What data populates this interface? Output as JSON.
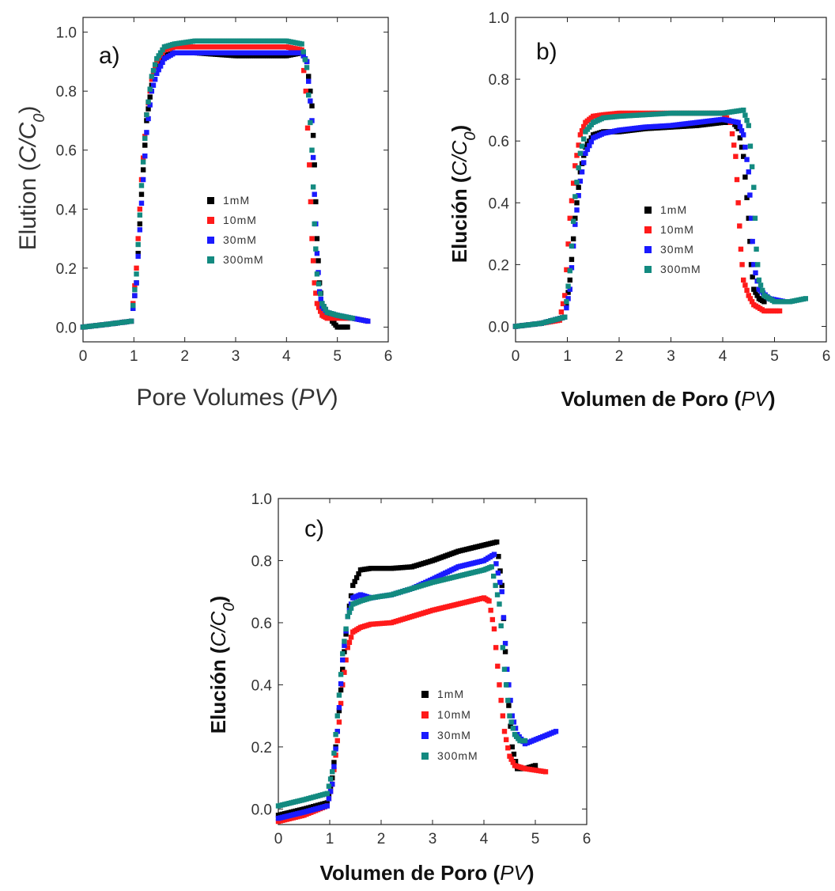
{
  "chart_data": [
    {
      "type": "scatter",
      "panel_label": "a)",
      "xlabel_text": "Pore Volumes",
      "xlabel_unit": "PV",
      "ylabel_text": "Elution",
      "ylabel_var": "C/C",
      "ylabel_sub": "0",
      "xlim": [
        0,
        6
      ],
      "ylim": [
        -0.05,
        1.05
      ],
      "xticks": [
        "0",
        "1",
        "2",
        "3",
        "4",
        "5",
        "6"
      ],
      "yticks": [
        "0.0",
        "0.2",
        "0.4",
        "0.6",
        "0.8",
        "1.0"
      ],
      "legend_position": "center",
      "series": [
        {
          "name": "1mM",
          "color": "#000000",
          "x": [
            0,
            0.5,
            0.95,
            1.05,
            1.15,
            1.25,
            1.35,
            1.45,
            1.6,
            1.8,
            2.2,
            3,
            3.5,
            4,
            4.3,
            4.4,
            4.5,
            4.55,
            4.6,
            4.65,
            4.7,
            4.8,
            4.9,
            5,
            5.1,
            5.2
          ],
          "y": [
            0.0,
            0.01,
            0.02,
            0.15,
            0.45,
            0.7,
            0.82,
            0.88,
            0.92,
            0.93,
            0.93,
            0.92,
            0.92,
            0.92,
            0.93,
            0.9,
            0.75,
            0.55,
            0.3,
            0.15,
            0.08,
            0.05,
            0.02,
            0.0,
            0.0,
            0.0
          ]
        },
        {
          "name": "10mM",
          "color": "#ff1a1a",
          "x": [
            0,
            0.5,
            0.95,
            1.05,
            1.15,
            1.25,
            1.35,
            1.45,
            1.6,
            1.8,
            2.2,
            3,
            3.5,
            4,
            4.3,
            4.38,
            4.45,
            4.5,
            4.55,
            4.6,
            4.7,
            4.8,
            5,
            5.3,
            5.6
          ],
          "y": [
            0.0,
            0.01,
            0.02,
            0.2,
            0.5,
            0.72,
            0.84,
            0.9,
            0.94,
            0.95,
            0.95,
            0.95,
            0.95,
            0.95,
            0.94,
            0.8,
            0.55,
            0.3,
            0.15,
            0.08,
            0.04,
            0.03,
            0.03,
            0.03,
            0.02
          ]
        },
        {
          "name": "30mM",
          "color": "#1a1aff",
          "x": [
            0,
            0.5,
            0.95,
            1.05,
            1.15,
            1.25,
            1.35,
            1.45,
            1.6,
            1.8,
            2.2,
            3,
            3.5,
            4,
            4.3,
            4.4,
            4.5,
            4.55,
            4.6,
            4.65,
            4.7,
            4.8,
            5,
            5.3,
            5.6
          ],
          "y": [
            0.0,
            0.01,
            0.02,
            0.15,
            0.42,
            0.66,
            0.8,
            0.86,
            0.91,
            0.93,
            0.93,
            0.93,
            0.93,
            0.93,
            0.93,
            0.9,
            0.7,
            0.45,
            0.25,
            0.12,
            0.07,
            0.05,
            0.04,
            0.03,
            0.02
          ]
        },
        {
          "name": "300mM",
          "color": "#138a80",
          "x": [
            0,
            0.5,
            0.95,
            1.05,
            1.15,
            1.25,
            1.35,
            1.45,
            1.6,
            1.8,
            2.2,
            3,
            3.5,
            4,
            4.3,
            4.4,
            4.5,
            4.55,
            4.6,
            4.7,
            4.8,
            5,
            5.3
          ],
          "y": [
            0.0,
            0.01,
            0.02,
            0.18,
            0.48,
            0.72,
            0.85,
            0.91,
            0.95,
            0.96,
            0.97,
            0.97,
            0.97,
            0.97,
            0.96,
            0.88,
            0.6,
            0.35,
            0.18,
            0.08,
            0.05,
            0.04,
            0.03
          ]
        }
      ],
      "legend": [
        {
          "label": "1mM",
          "color": "#000000"
        },
        {
          "label": "10mM",
          "color": "#ff1a1a"
        },
        {
          "label": "30mM",
          "color": "#1a1aff"
        },
        {
          "label": "300mM",
          "color": "#138a80"
        }
      ]
    },
    {
      "type": "scatter",
      "panel_label": "b)",
      "xlabel_text": "Volumen de Poro",
      "xlabel_unit": "PV",
      "ylabel_text": "Elución",
      "ylabel_var": "C/C",
      "ylabel_sub": "0",
      "xlim": [
        0,
        6
      ],
      "ylim": [
        -0.05,
        1.0
      ],
      "xticks": [
        "0",
        "1",
        "2",
        "3",
        "4",
        "5",
        "6"
      ],
      "yticks": [
        "0.0",
        "0.2",
        "0.4",
        "0.6",
        "0.8",
        "1.0"
      ],
      "legend_position": "center-right",
      "series": [
        {
          "name": "1mM",
          "color": "#000000",
          "x": [
            0,
            0.5,
            0.95,
            1.05,
            1.15,
            1.25,
            1.35,
            1.5,
            1.7,
            2,
            2.5,
            3,
            3.5,
            4,
            4.2,
            4.3,
            4.4,
            4.5,
            4.55,
            4.6,
            4.7,
            4.8
          ],
          "y": [
            0.0,
            0.01,
            0.03,
            0.15,
            0.35,
            0.5,
            0.58,
            0.62,
            0.63,
            0.63,
            0.64,
            0.645,
            0.65,
            0.66,
            0.66,
            0.64,
            0.55,
            0.35,
            0.2,
            0.12,
            0.09,
            0.08
          ]
        },
        {
          "name": "10mM",
          "color": "#ff1a1a",
          "x": [
            0,
            0.5,
            0.85,
            0.95,
            1.05,
            1.15,
            1.25,
            1.35,
            1.5,
            1.7,
            2,
            2.5,
            3,
            3.5,
            4,
            4.15,
            4.25,
            4.3,
            4.35,
            4.4,
            4.5,
            4.6,
            4.8,
            5.1
          ],
          "y": [
            0.0,
            0.01,
            0.02,
            0.1,
            0.35,
            0.52,
            0.62,
            0.66,
            0.68,
            0.685,
            0.69,
            0.69,
            0.69,
            0.69,
            0.69,
            0.66,
            0.55,
            0.4,
            0.25,
            0.15,
            0.1,
            0.07,
            0.05,
            0.05
          ]
        },
        {
          "name": "30mM",
          "color": "#1a1aff",
          "x": [
            0,
            0.5,
            0.95,
            1.05,
            1.15,
            1.25,
            1.35,
            1.5,
            1.7,
            2,
            2.5,
            3,
            3.5,
            4,
            4.3,
            4.4,
            4.5,
            4.55,
            4.6,
            4.7,
            4.9,
            5.2
          ],
          "y": [
            0.0,
            0.01,
            0.03,
            0.12,
            0.33,
            0.47,
            0.56,
            0.61,
            0.625,
            0.635,
            0.645,
            0.65,
            0.66,
            0.67,
            0.66,
            0.62,
            0.5,
            0.35,
            0.2,
            0.12,
            0.09,
            0.08
          ]
        },
        {
          "name": "300mM",
          "color": "#138a80",
          "x": [
            0,
            0.5,
            0.95,
            1.05,
            1.15,
            1.25,
            1.35,
            1.5,
            1.7,
            2,
            2.5,
            3,
            3.5,
            4,
            4.4,
            4.5,
            4.6,
            4.65,
            4.7,
            4.8,
            5,
            5.3,
            5.6
          ],
          "y": [
            0.0,
            0.01,
            0.03,
            0.18,
            0.42,
            0.56,
            0.63,
            0.66,
            0.675,
            0.68,
            0.685,
            0.69,
            0.69,
            0.69,
            0.7,
            0.65,
            0.45,
            0.25,
            0.15,
            0.1,
            0.08,
            0.08,
            0.09
          ]
        }
      ],
      "legend": [
        {
          "label": "1mM",
          "color": "#000000"
        },
        {
          "label": "10mM",
          "color": "#ff1a1a"
        },
        {
          "label": "30mM",
          "color": "#1a1aff"
        },
        {
          "label": "300mM",
          "color": "#138a80"
        }
      ]
    },
    {
      "type": "scatter",
      "panel_label": "c)",
      "xlabel_text": "Volumen de Poro",
      "xlabel_unit": "PV",
      "ylabel_text": "Elución",
      "ylabel_var": "C/C",
      "ylabel_sub": "0",
      "xlim": [
        0,
        6
      ],
      "ylim": [
        -0.05,
        1.0
      ],
      "xticks": [
        "0",
        "1",
        "2",
        "3",
        "4",
        "5",
        "6"
      ],
      "yticks": [
        "0.0",
        "0.2",
        "0.4",
        "0.6",
        "0.8",
        "1.0"
      ],
      "legend_position": "bottom-right",
      "series": [
        {
          "name": "1mM",
          "color": "#000000",
          "x": [
            0,
            0.5,
            0.95,
            1.05,
            1.15,
            1.25,
            1.35,
            1.45,
            1.6,
            1.8,
            2.2,
            2.6,
            3,
            3.5,
            4,
            4.25,
            4.35,
            4.45,
            4.55,
            4.65,
            4.8,
            5
          ],
          "y": [
            -0.02,
            0.0,
            0.02,
            0.1,
            0.25,
            0.45,
            0.62,
            0.72,
            0.77,
            0.775,
            0.775,
            0.78,
            0.8,
            0.83,
            0.85,
            0.86,
            0.72,
            0.4,
            0.2,
            0.13,
            0.13,
            0.14
          ]
        },
        {
          "name": "10mM",
          "color": "#ff1a1a",
          "x": [
            0,
            0.5,
            0.95,
            1.05,
            1.15,
            1.25,
            1.35,
            1.45,
            1.6,
            1.8,
            2.2,
            2.6,
            3,
            3.5,
            4,
            4.1,
            4.2,
            4.3,
            4.4,
            4.5,
            4.6,
            4.8,
            5.2
          ],
          "y": [
            -0.04,
            -0.02,
            0.01,
            0.08,
            0.22,
            0.4,
            0.52,
            0.57,
            0.585,
            0.595,
            0.6,
            0.62,
            0.64,
            0.66,
            0.68,
            0.67,
            0.58,
            0.4,
            0.25,
            0.17,
            0.14,
            0.13,
            0.12
          ]
        },
        {
          "name": "30mM",
          "color": "#1a1aff",
          "x": [
            0,
            0.5,
            0.95,
            1.05,
            1.15,
            1.25,
            1.35,
            1.45,
            1.6,
            1.8,
            2.2,
            2.6,
            3,
            3.5,
            4,
            4.2,
            4.35,
            4.45,
            4.55,
            4.65,
            4.8,
            5.1,
            5.4
          ],
          "y": [
            -0.03,
            -0.01,
            0.01,
            0.08,
            0.25,
            0.48,
            0.62,
            0.68,
            0.69,
            0.68,
            0.69,
            0.71,
            0.74,
            0.78,
            0.8,
            0.82,
            0.7,
            0.45,
            0.3,
            0.24,
            0.21,
            0.23,
            0.25
          ]
        },
        {
          "name": "300mM",
          "color": "#138a80",
          "x": [
            0,
            0.5,
            0.95,
            1.05,
            1.15,
            1.25,
            1.35,
            1.45,
            1.6,
            1.8,
            2.2,
            2.6,
            3,
            3.5,
            4,
            4.15,
            4.3,
            4.4,
            4.5,
            4.6,
            4.7,
            4.8
          ],
          "y": [
            0.01,
            0.03,
            0.05,
            0.12,
            0.3,
            0.5,
            0.62,
            0.66,
            0.67,
            0.68,
            0.69,
            0.71,
            0.73,
            0.75,
            0.77,
            0.78,
            0.66,
            0.45,
            0.3,
            0.24,
            0.22,
            0.22
          ]
        }
      ],
      "legend": [
        {
          "label": "1mM",
          "color": "#000000"
        },
        {
          "label": "10mM",
          "color": "#ff1a1a"
        },
        {
          "label": "30mM",
          "color": "#1a1aff"
        },
        {
          "label": "300mM",
          "color": "#138a80"
        }
      ]
    }
  ]
}
